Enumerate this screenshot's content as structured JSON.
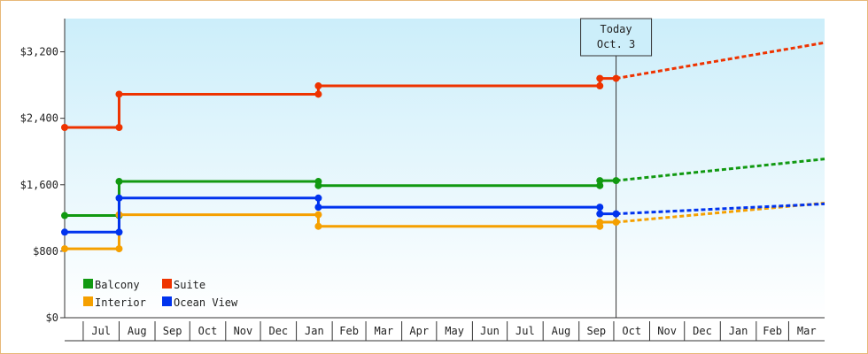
{
  "chart_data": {
    "type": "line",
    "title": "",
    "xlabel": "",
    "ylabel": "",
    "ylim": [
      0,
      3600
    ],
    "y_ticks": [
      0,
      800,
      1600,
      2400,
      3200
    ],
    "y_tick_labels": [
      "$0",
      "$800",
      "$1,600",
      "$2,400",
      "$3,200"
    ],
    "x_tick_labels": [
      "Jul",
      "Aug",
      "Sep",
      "Oct",
      "Nov",
      "Dec",
      "Jan",
      "Feb",
      "Mar",
      "Apr",
      "May",
      "Jun",
      "Jul",
      "Aug",
      "Sep",
      "Oct",
      "Nov",
      "Dec",
      "Jan",
      "Feb",
      "Mar"
    ],
    "x_range": [
      "2023-06-15",
      "2025-04-01"
    ],
    "today": {
      "line1": "Today",
      "line2": "Oct. 3",
      "date": "2024-10-03"
    },
    "grid": false,
    "legend_position": "bottom-left",
    "series": [
      {
        "name": "Balcony",
        "color": "#119911",
        "steps": [
          [
            "2023-06-15",
            1230
          ],
          [
            "2023-08-01",
            1230
          ],
          [
            "2023-08-01",
            1640
          ],
          [
            "2024-01-20",
            1640
          ],
          [
            "2024-01-20",
            1590
          ],
          [
            "2024-09-19",
            1590
          ],
          [
            "2024-09-19",
            1650
          ],
          [
            "2024-10-03",
            1650
          ]
        ],
        "points": [
          [
            "2023-06-15",
            1230
          ],
          [
            "2023-08-01",
            1230
          ],
          [
            "2023-08-01",
            1640
          ],
          [
            "2024-01-20",
            1640
          ],
          [
            "2024-01-20",
            1590
          ],
          [
            "2024-09-19",
            1590
          ],
          [
            "2024-09-19",
            1650
          ],
          [
            "2024-10-03",
            1650
          ]
        ],
        "forecast": [
          [
            "2024-10-03",
            1650
          ],
          [
            "2025-04-01",
            1910
          ]
        ]
      },
      {
        "name": "Suite",
        "color": "#ee3300",
        "steps": [
          [
            "2023-06-15",
            2290
          ],
          [
            "2023-08-01",
            2290
          ],
          [
            "2023-08-01",
            2690
          ],
          [
            "2024-01-20",
            2690
          ],
          [
            "2024-01-20",
            2790
          ],
          [
            "2024-09-19",
            2790
          ],
          [
            "2024-09-19",
            2880
          ],
          [
            "2024-10-03",
            2880
          ]
        ],
        "points": [
          [
            "2023-06-15",
            2290
          ],
          [
            "2023-08-01",
            2290
          ],
          [
            "2023-08-01",
            2690
          ],
          [
            "2024-01-20",
            2690
          ],
          [
            "2024-01-20",
            2790
          ],
          [
            "2024-09-19",
            2790
          ],
          [
            "2024-09-19",
            2880
          ],
          [
            "2024-10-03",
            2880
          ]
        ],
        "forecast": [
          [
            "2024-10-03",
            2880
          ],
          [
            "2025-04-01",
            3310
          ]
        ]
      },
      {
        "name": "Interior",
        "color": "#f5a000",
        "steps": [
          [
            "2023-06-15",
            830
          ],
          [
            "2023-08-01",
            830
          ],
          [
            "2023-08-01",
            1240
          ],
          [
            "2024-01-20",
            1240
          ],
          [
            "2024-01-20",
            1100
          ],
          [
            "2024-09-19",
            1100
          ],
          [
            "2024-09-19",
            1150
          ],
          [
            "2024-10-03",
            1150
          ]
        ],
        "points": [
          [
            "2023-06-15",
            830
          ],
          [
            "2023-08-01",
            830
          ],
          [
            "2023-08-01",
            1240
          ],
          [
            "2024-01-20",
            1240
          ],
          [
            "2024-01-20",
            1100
          ],
          [
            "2024-09-19",
            1100
          ],
          [
            "2024-09-19",
            1150
          ],
          [
            "2024-10-03",
            1150
          ]
        ],
        "forecast": [
          [
            "2024-10-03",
            1150
          ],
          [
            "2025-04-01",
            1380
          ]
        ]
      },
      {
        "name": "Ocean View",
        "color": "#0033ee",
        "steps": [
          [
            "2023-06-15",
            1030
          ],
          [
            "2023-08-01",
            1030
          ],
          [
            "2023-08-01",
            1440
          ],
          [
            "2024-01-20",
            1440
          ],
          [
            "2024-01-20",
            1330
          ],
          [
            "2024-09-19",
            1330
          ],
          [
            "2024-09-19",
            1250
          ],
          [
            "2024-10-03",
            1250
          ]
        ],
        "points": [
          [
            "2023-06-15",
            1030
          ],
          [
            "2023-08-01",
            1030
          ],
          [
            "2023-08-01",
            1440
          ],
          [
            "2024-01-20",
            1440
          ],
          [
            "2024-01-20",
            1330
          ],
          [
            "2024-09-19",
            1330
          ],
          [
            "2024-09-19",
            1250
          ],
          [
            "2024-10-03",
            1250
          ]
        ],
        "forecast": [
          [
            "2024-10-03",
            1250
          ],
          [
            "2025-04-01",
            1370
          ]
        ]
      }
    ],
    "legend": [
      {
        "name": "Balcony",
        "color": "#119911"
      },
      {
        "name": "Suite",
        "color": "#ee3300"
      },
      {
        "name": "Interior",
        "color": "#f5a000"
      },
      {
        "name": "Ocean View",
        "color": "#0033ee"
      }
    ]
  }
}
